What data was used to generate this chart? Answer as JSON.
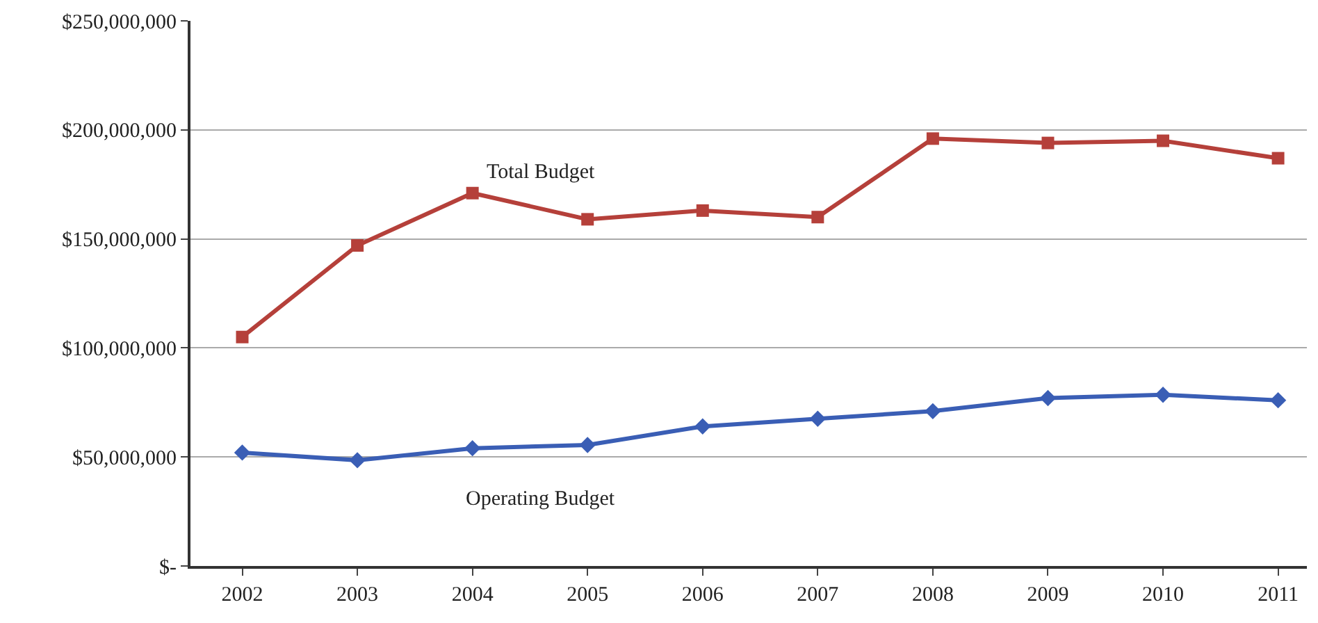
{
  "chart_data": {
    "type": "line",
    "categories": [
      "2002",
      "2003",
      "2004",
      "2005",
      "2006",
      "2007",
      "2008",
      "2009",
      "2010",
      "2011"
    ],
    "series": [
      {
        "name": "Total Budget",
        "color": "#b5403a",
        "marker": "square",
        "values": [
          105000000,
          147000000,
          171000000,
          159000000,
          163000000,
          160000000,
          196000000,
          194000000,
          195000000,
          187000000
        ]
      },
      {
        "name": "Operating Budget",
        "color": "#3a5eb5",
        "marker": "diamond",
        "values": [
          52000000,
          48500000,
          54000000,
          55500000,
          64000000,
          67500000,
          71000000,
          77000000,
          78500000,
          76000000
        ]
      }
    ],
    "ylim": [
      0,
      250000000
    ],
    "yticks": [
      {
        "value": 0,
        "label": "$-"
      },
      {
        "value": 50000000,
        "label": "$50,000,000"
      },
      {
        "value": 100000000,
        "label": "$100,000,000"
      },
      {
        "value": 150000000,
        "label": "$150,000,000"
      },
      {
        "value": 200000000,
        "label": "$200,000,000"
      },
      {
        "value": 250000000,
        "label": "$250,000,000"
      }
    ],
    "grid": "y",
    "legend": false,
    "line_style": "solid"
  }
}
